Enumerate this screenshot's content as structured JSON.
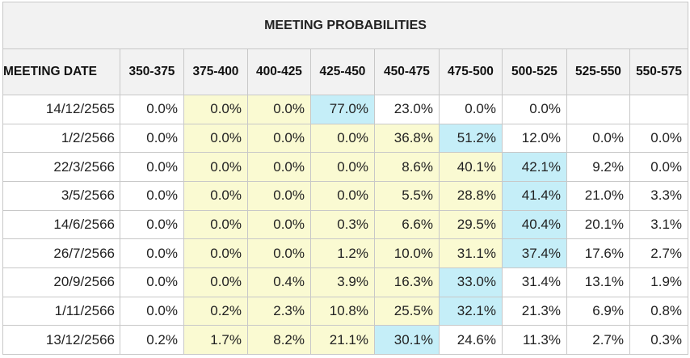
{
  "chart_data": {
    "type": "table",
    "title": "MEETING PROBABILITIES",
    "columns": [
      "MEETING DATE",
      "350-375",
      "375-400",
      "400-425",
      "425-450",
      "450-475",
      "475-500",
      "500-525",
      "525-550",
      "550-575"
    ],
    "rows": [
      {
        "date": "14/12/2565",
        "values": [
          "0.0%",
          "0.0%",
          "0.0%",
          "77.0%",
          "23.0%",
          "0.0%",
          "0.0%",
          "",
          ""
        ],
        "shading": [
          "",
          "yellow",
          "yellow",
          "cyan",
          "",
          "",
          "",
          "",
          ""
        ]
      },
      {
        "date": "1/2/2566",
        "values": [
          "0.0%",
          "0.0%",
          "0.0%",
          "0.0%",
          "36.8%",
          "51.2%",
          "12.0%",
          "0.0%",
          "0.0%"
        ],
        "shading": [
          "",
          "yellow",
          "yellow",
          "yellow",
          "yellow",
          "cyan",
          "",
          "",
          ""
        ]
      },
      {
        "date": "22/3/2566",
        "values": [
          "0.0%",
          "0.0%",
          "0.0%",
          "0.0%",
          "8.6%",
          "40.1%",
          "42.1%",
          "9.2%",
          "0.0%"
        ],
        "shading": [
          "",
          "yellow",
          "yellow",
          "yellow",
          "yellow",
          "yellow",
          "cyan",
          "",
          ""
        ]
      },
      {
        "date": "3/5/2566",
        "values": [
          "0.0%",
          "0.0%",
          "0.0%",
          "0.0%",
          "5.5%",
          "28.8%",
          "41.4%",
          "21.0%",
          "3.3%"
        ],
        "shading": [
          "",
          "yellow",
          "yellow",
          "yellow",
          "yellow",
          "yellow",
          "cyan",
          "",
          ""
        ]
      },
      {
        "date": "14/6/2566",
        "values": [
          "0.0%",
          "0.0%",
          "0.0%",
          "0.3%",
          "6.6%",
          "29.5%",
          "40.4%",
          "20.1%",
          "3.1%"
        ],
        "shading": [
          "",
          "yellow",
          "yellow",
          "yellow",
          "yellow",
          "yellow",
          "cyan",
          "",
          ""
        ]
      },
      {
        "date": "26/7/2566",
        "values": [
          "0.0%",
          "0.0%",
          "0.0%",
          "1.2%",
          "10.0%",
          "31.1%",
          "37.4%",
          "17.6%",
          "2.7%"
        ],
        "shading": [
          "",
          "yellow",
          "yellow",
          "yellow",
          "yellow",
          "yellow",
          "cyan",
          "",
          ""
        ]
      },
      {
        "date": "20/9/2566",
        "values": [
          "0.0%",
          "0.0%",
          "0.4%",
          "3.9%",
          "16.3%",
          "33.0%",
          "31.4%",
          "13.1%",
          "1.9%"
        ],
        "shading": [
          "",
          "yellow",
          "yellow",
          "yellow",
          "yellow",
          "cyan",
          "",
          "",
          ""
        ]
      },
      {
        "date": "1/11/2566",
        "values": [
          "0.0%",
          "0.2%",
          "2.3%",
          "10.8%",
          "25.5%",
          "32.1%",
          "21.3%",
          "6.9%",
          "0.8%"
        ],
        "shading": [
          "",
          "yellow",
          "yellow",
          "yellow",
          "yellow",
          "cyan",
          "",
          "",
          ""
        ]
      },
      {
        "date": "13/12/2566",
        "values": [
          "0.2%",
          "1.7%",
          "8.2%",
          "21.1%",
          "30.1%",
          "24.6%",
          "11.3%",
          "2.7%",
          "0.3%"
        ],
        "shading": [
          "",
          "yellow",
          "yellow",
          "yellow",
          "cyan",
          "",
          "",
          "",
          ""
        ]
      }
    ],
    "colors": {
      "yellow": "#fafad2",
      "cyan": "#c5eef8",
      "header_bg": "#f2f2f2",
      "border": "#c8c8c8"
    }
  }
}
